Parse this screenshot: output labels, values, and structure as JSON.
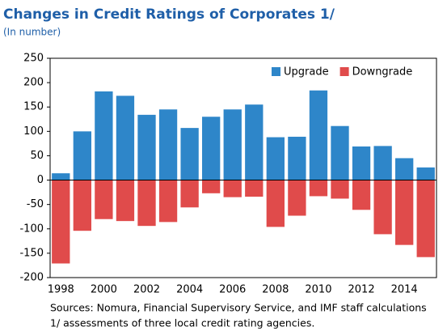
{
  "chart_data": {
    "type": "bar",
    "title": "Changes in Credit Ratings of Corporates 1/",
    "subtitle": "(In number)",
    "notes": [
      "Sources: Nomura, Financial Supervisory Service, and IMF staff calculations",
      "1/ assessments of three local credit rating agencies."
    ],
    "categories": [
      "1998",
      null,
      "2000",
      null,
      "2002",
      null,
      "2004",
      null,
      "2006",
      null,
      "2008",
      null,
      "2010",
      null,
      "2012",
      null,
      "2014",
      null
    ],
    "series": [
      {
        "name": "Upgrade",
        "color": "#2e86c9",
        "values": [
          14,
          100,
          182,
          173,
          134,
          145,
          107,
          130,
          145,
          155,
          88,
          89,
          184,
          111,
          69,
          70,
          45,
          26
        ]
      },
      {
        "name": "Downgrade",
        "color": "#e04b4b",
        "values": [
          -171,
          -104,
          -80,
          -84,
          -94,
          -86,
          -56,
          -27,
          -35,
          -34,
          -96,
          -73,
          -33,
          -38,
          -61,
          -111,
          -133,
          -158
        ]
      }
    ],
    "ylim": [
      -200,
      250
    ],
    "yticks": [
      -200,
      -150,
      -100,
      -50,
      0,
      50,
      100,
      150,
      200,
      250
    ],
    "legend": "upper right"
  }
}
